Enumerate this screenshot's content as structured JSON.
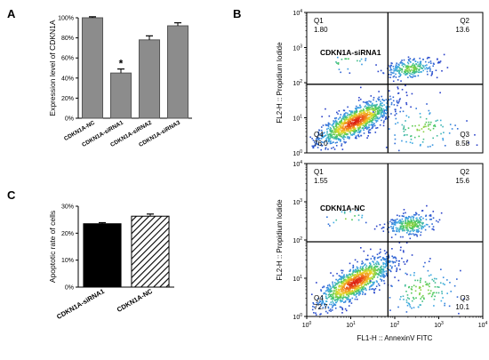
{
  "panels": {
    "a": {
      "letter": "A"
    },
    "b": {
      "letter": "B"
    },
    "c": {
      "letter": "C"
    }
  },
  "chart_data": [
    {
      "panel": "A",
      "type": "bar",
      "ylabel": "Expression level of CDKN1A",
      "categories": [
        "CDKN1A-NC",
        "CDKN1A-siRNA1",
        "CDKN1A-siRNA2",
        "CDKN1A-siRNA3"
      ],
      "values": [
        100,
        45,
        78,
        92
      ],
      "errors": [
        1,
        4,
        4,
        3
      ],
      "ylim": [
        0,
        100
      ],
      "yticks": [
        "0%",
        "20%",
        "40%",
        "60%",
        "80%",
        "100%"
      ],
      "annotations": [
        {
          "category": "CDKN1A-siRNA1",
          "text": "*"
        }
      ],
      "colors": {
        "bar": "#8c8c8c",
        "edge": "#555555"
      }
    },
    {
      "panel": "C",
      "type": "bar",
      "ylabel": "Apoptotic rate of cells",
      "categories": [
        "CDKN1A-siRNA1",
        "CDKN1A-NC"
      ],
      "values": [
        23.5,
        26.3
      ],
      "errors": [
        0.4,
        0.8
      ],
      "ylim": [
        0,
        30
      ],
      "yticks": [
        "0%",
        "10%",
        "20%",
        "30%"
      ],
      "styles": [
        "solid",
        "hatched"
      ],
      "colors": {
        "solid": "#000000",
        "hatch": "#000000"
      }
    },
    {
      "panel": "B",
      "type": "scatter",
      "subtype": "flow-cytometry-quadrant",
      "title": "CDKN1A-siRNA1",
      "xlabel": "FL1-H :: AnnexinV FITC",
      "ylabel": "FL2-H :: Propidium Iodide",
      "xscale": "log",
      "yscale": "log",
      "xlim": [
        1,
        10000
      ],
      "ylim": [
        1,
        10000
      ],
      "quadrant_gate": {
        "x": 70,
        "y": 90
      },
      "quadrants": [
        {
          "name": "Q1",
          "value": "1.80"
        },
        {
          "name": "Q2",
          "value": "13.6"
        },
        {
          "name": "Q3",
          "value": "8.58"
        },
        {
          "name": "Q4",
          "value": "76.0"
        }
      ],
      "populations": [
        {
          "name": "live",
          "x": 12,
          "y": 8,
          "n": 1100
        },
        {
          "name": "late-apoptotic",
          "x": 220,
          "y": 260,
          "n": 260
        },
        {
          "name": "early-apoptotic",
          "x": 400,
          "y": 5,
          "n": 110
        },
        {
          "name": "necrotic",
          "x": 8,
          "y": 400,
          "n": 20
        }
      ]
    },
    {
      "panel": "B",
      "type": "scatter",
      "subtype": "flow-cytometry-quadrant",
      "title": "CDKN1A-NC",
      "xlabel": "FL1-H :: AnnexinV FITC",
      "ylabel": "FL2-H :: Propidium Iodide",
      "xscale": "log",
      "yscale": "log",
      "xlim": [
        1,
        10000
      ],
      "ylim": [
        1,
        10000
      ],
      "quadrant_gate": {
        "x": 70,
        "y": 90
      },
      "quadrants": [
        {
          "name": "Q1",
          "value": "1.55"
        },
        {
          "name": "Q2",
          "value": "15.6"
        },
        {
          "name": "Q3",
          "value": "10.1"
        },
        {
          "name": "Q4",
          "value": "72.7"
        }
      ],
      "populations": [
        {
          "name": "live",
          "x": 12,
          "y": 8,
          "n": 1100
        },
        {
          "name": "late-apoptotic",
          "x": 220,
          "y": 260,
          "n": 300
        },
        {
          "name": "early-apoptotic",
          "x": 400,
          "y": 5,
          "n": 130
        },
        {
          "name": "necrotic",
          "x": 8,
          "y": 400,
          "n": 18
        }
      ]
    }
  ],
  "log_tick_labels": [
    {
      "base": "10",
      "exp": "0"
    },
    {
      "base": "10",
      "exp": "1"
    },
    {
      "base": "10",
      "exp": "2"
    },
    {
      "base": "10",
      "exp": "3"
    },
    {
      "base": "10",
      "exp": "4"
    }
  ]
}
